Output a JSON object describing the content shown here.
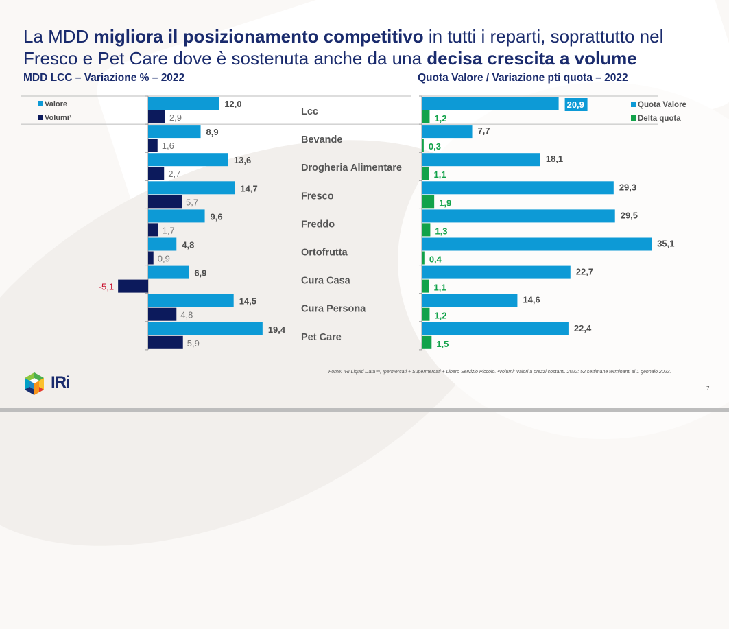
{
  "title": {
    "parts": [
      {
        "text": "La MDD ",
        "bold": false
      },
      {
        "text": "migliora il posizionamento competitivo",
        "bold": true
      },
      {
        "text": " in tutti i reparti, soprattutto nel Fresco e Pet Care dove è sostenuta anche da una ",
        "bold": false
      },
      {
        "text": "decisa crescita a volume",
        "bold": true
      }
    ]
  },
  "left_subtitle": "MDD LCC – Variazione % – 2022",
  "right_subtitle": "Quota Valore / Variazione pti quota – 2022",
  "colors": {
    "valore": "#0d9ad6",
    "volumi": "#0c1a5c",
    "quota_valore": "#0d9ad6",
    "delta_quota": "#12a24a",
    "negative_label": "#c8102e",
    "label_dark": "#4d4d4d",
    "title": "#1a2b6d"
  },
  "source": "Fonte: IRI Liquid Data™, Ipermercati + Supermercati + Libero Servizio Piccolo. ¹Volumi: Valori a prezzi costanti. 2022: 52 settimane terminanti al 1 gennaio 2023.",
  "page_number": "7",
  "logo_text": "IRi",
  "chart_data": [
    {
      "type": "bar",
      "orientation": "horizontal",
      "title": "MDD LCC – Variazione % – 2022",
      "categories": [
        "Lcc",
        "Bevande",
        "Drogheria Alimentare",
        "Fresco",
        "Freddo",
        "Ortofrutta",
        "Cura Casa",
        "Cura Persona",
        "Pet Care"
      ],
      "series": [
        {
          "name": "Valore",
          "values": [
            12.0,
            8.9,
            13.6,
            14.7,
            9.6,
            4.8,
            6.9,
            14.5,
            19.4
          ],
          "labels": [
            "12,0",
            "8,9",
            "13,6",
            "14,7",
            "9,6",
            "4,8",
            "6,9",
            "14,5",
            "19,4"
          ]
        },
        {
          "name": "Volumi¹",
          "values": [
            2.9,
            1.6,
            2.7,
            5.7,
            1.7,
            0.9,
            -5.1,
            4.8,
            5.9
          ],
          "labels": [
            "2,9",
            "1,6",
            "2,7",
            "5,7",
            "1,7",
            "0,9",
            "-5,1",
            "4,8",
            "5,9"
          ]
        }
      ],
      "legend": "top-left",
      "grid": false
    },
    {
      "type": "bar",
      "orientation": "horizontal",
      "title": "Quota Valore / Variazione pti quota – 2022",
      "categories": [
        "Lcc",
        "Bevande",
        "Drogheria Alimentare",
        "Fresco",
        "Freddo",
        "Ortofrutta",
        "Cura Casa",
        "Cura Persona",
        "Pet Care"
      ],
      "series": [
        {
          "name": "Quota Valore",
          "values": [
            20.9,
            7.7,
            18.1,
            29.3,
            29.5,
            35.1,
            22.7,
            14.6,
            22.4
          ],
          "labels": [
            "20,9",
            "7,7",
            "18,1",
            "29,3",
            "29,5",
            "35,1",
            "22,7",
            "14,6",
            "22,4"
          ]
        },
        {
          "name": "Delta quota",
          "values": [
            1.2,
            0.3,
            1.1,
            1.9,
            1.3,
            0.4,
            1.1,
            1.2,
            1.5
          ],
          "labels": [
            "1,2",
            "0,3",
            "1,1",
            "1,9",
            "1,3",
            "0,4",
            "1,1",
            "1,2",
            "1,5"
          ]
        }
      ],
      "legend": "top-right",
      "grid": false
    }
  ]
}
